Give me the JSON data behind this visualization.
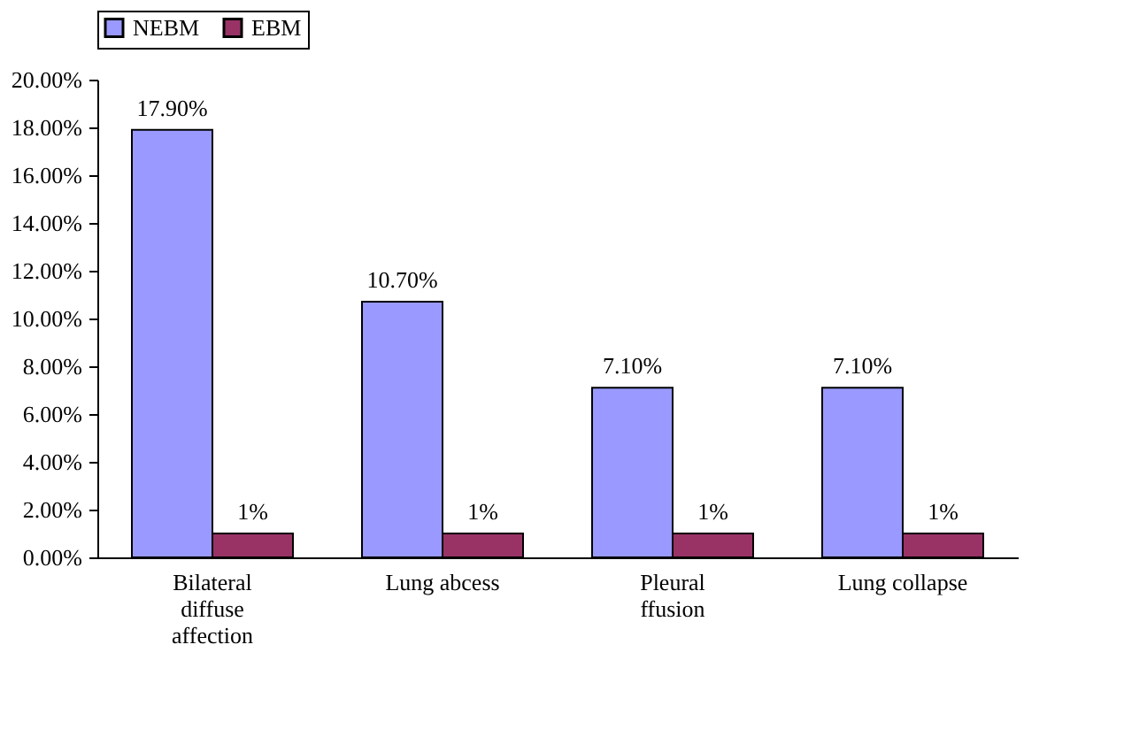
{
  "chart_data": {
    "type": "bar",
    "categories": [
      "Bilateral diffuse affection",
      "Lung abcess",
      "Pleural ffusion",
      "Lung collapse"
    ],
    "series": [
      {
        "name": "NEBM",
        "color": "#9999ff",
        "values": [
          17.9,
          10.7,
          7.1,
          7.1
        ],
        "value_labels": [
          "17.90%",
          "10.70%",
          "7.10%",
          "7.10%"
        ]
      },
      {
        "name": "EBM",
        "color": "#993366",
        "values": [
          1,
          1,
          1,
          1
        ],
        "value_labels": [
          "1%",
          "1%",
          "1%",
          "1%"
        ]
      }
    ],
    "ylim": [
      0,
      20
    ],
    "yticks": [
      {
        "value": 0,
        "label": "0.00%"
      },
      {
        "value": 2,
        "label": "2.00%"
      },
      {
        "value": 4,
        "label": "4.00%"
      },
      {
        "value": 6,
        "label": "6.00%"
      },
      {
        "value": 8,
        "label": "8.00%"
      },
      {
        "value": 10,
        "label": "10.00%"
      },
      {
        "value": 12,
        "label": "12.00%"
      },
      {
        "value": 14,
        "label": "14.00%"
      },
      {
        "value": 16,
        "label": "16.00%"
      },
      {
        "value": 18,
        "label": "18.00%"
      },
      {
        "value": 20,
        "label": "20.00%"
      }
    ],
    "legend": "top",
    "grid": false
  }
}
